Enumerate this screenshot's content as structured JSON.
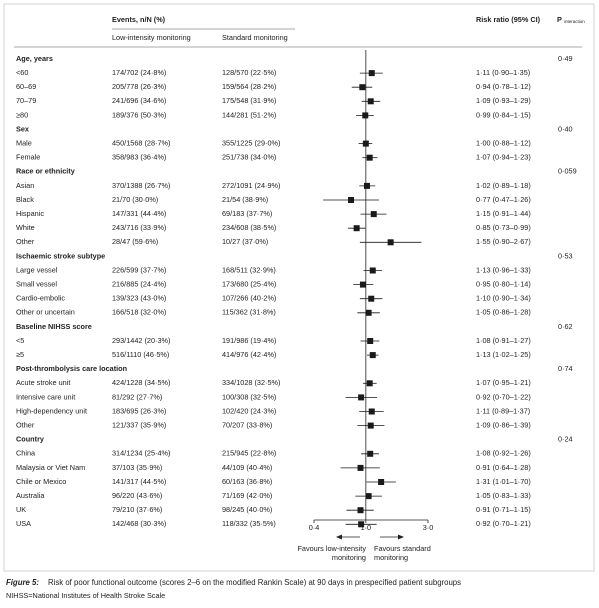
{
  "chart_data": {
    "type": "forest",
    "headers": {
      "events": "Events, n/N (%)",
      "low": "Low-intensity monitoring",
      "standard": "Standard monitoring",
      "rr": "Risk ratio (95% CI)",
      "p": "P",
      "p_sub": "interaction"
    },
    "groups": [
      {
        "name": "Age, years",
        "p": "0·49",
        "rows": [
          {
            "label": "<60",
            "low": "174/702 (24·8%)",
            "standard": "128/570 (22·5%)",
            "rr": 1.11,
            "lo": 0.9,
            "hi": 1.35,
            "rr_label": "1·11 (0·90–1·35)"
          },
          {
            "label": "60–69",
            "low": "205/778 (26·3%)",
            "standard": "159/564 (28·2%)",
            "rr": 0.94,
            "lo": 0.78,
            "hi": 1.12,
            "rr_label": "0·94 (0·78–1·12)"
          },
          {
            "label": "70–79",
            "low": "241/696 (34·6%)",
            "standard": "175/548 (31·9%)",
            "rr": 1.09,
            "lo": 0.93,
            "hi": 1.29,
            "rr_label": "1·09 (0·93–1·29)"
          },
          {
            "label": "≥80",
            "low": "189/376 (50·3%)",
            "standard": "144/281 (51·2%)",
            "rr": 0.99,
            "lo": 0.84,
            "hi": 1.15,
            "rr_label": "0·99 (0·84–1·15)"
          }
        ]
      },
      {
        "name": "Sex",
        "p": "0·40",
        "rows": [
          {
            "label": "Male",
            "low": "450/1568 (28·7%)",
            "standard": "355/1225 (29·0%)",
            "rr": 1.0,
            "lo": 0.88,
            "hi": 1.12,
            "rr_label": "1·00 (0·88–1·12)"
          },
          {
            "label": "Female",
            "low": "358/983 (36·4%)",
            "standard": "251/738 (34·0%)",
            "rr": 1.07,
            "lo": 0.94,
            "hi": 1.23,
            "rr_label": "1·07 (0·94–1·23)"
          }
        ]
      },
      {
        "name": "Race or ethnicity",
        "p": "0·059",
        "rows": [
          {
            "label": "Asian",
            "low": "370/1388 (26·7%)",
            "standard": "272/1091 (24·9%)",
            "rr": 1.02,
            "lo": 0.89,
            "hi": 1.18,
            "rr_label": "1·02 (0·89–1·18)"
          },
          {
            "label": "Black",
            "low": "21/70 (30·0%)",
            "standard": "21/54 (38·9%)",
            "rr": 0.77,
            "lo": 0.47,
            "hi": 1.26,
            "rr_label": "0·77 (0·47–1·26)"
          },
          {
            "label": "Hispanic",
            "low": "147/331 (44·4%)",
            "standard": "69/183 (37·7%)",
            "rr": 1.15,
            "lo": 0.91,
            "hi": 1.44,
            "rr_label": "1·15 (0·91–1·44)"
          },
          {
            "label": "White",
            "low": "243/716 (33·9%)",
            "standard": "234/608 (38·5%)",
            "rr": 0.85,
            "lo": 0.73,
            "hi": 0.99,
            "rr_label": "0·85 (0·73–0·99)"
          },
          {
            "label": "Other",
            "low": "28/47 (59·6%)",
            "standard": "10/27 (37·0%)",
            "rr": 1.55,
            "lo": 0.9,
            "hi": 2.67,
            "rr_label": "1·55 (0·90–2·67)"
          }
        ]
      },
      {
        "name": "Ischaemic stroke subtype",
        "p": "0·53",
        "rows": [
          {
            "label": "Large vessel",
            "low": "226/599 (37·7%)",
            "standard": "168/511 (32·9%)",
            "rr": 1.13,
            "lo": 0.96,
            "hi": 1.33,
            "rr_label": "1·13 (0·96–1·33)"
          },
          {
            "label": "Small vessel",
            "low": "216/885 (24·4%)",
            "standard": "173/680 (25·4%)",
            "rr": 0.95,
            "lo": 0.8,
            "hi": 1.14,
            "rr_label": "0·95 (0·80–1·14)"
          },
          {
            "label": "Cardio-embolic",
            "low": "139/323 (43·0%)",
            "standard": "107/266 (40·2%)",
            "rr": 1.1,
            "lo": 0.9,
            "hi": 1.34,
            "rr_label": "1·10 (0·90–1·34)"
          },
          {
            "label": "Other or uncertain",
            "low": "166/518 (32·0%)",
            "standard": "115/362 (31·8%)",
            "rr": 1.05,
            "lo": 0.86,
            "hi": 1.28,
            "rr_label": "1·05 (0·86–1·28)"
          }
        ]
      },
      {
        "name": "Baseline NIHSS score",
        "p": "0·62",
        "rows": [
          {
            "label": "<5",
            "low": "293/1442 (20·3%)",
            "standard": "191/986 (19·4%)",
            "rr": 1.08,
            "lo": 0.91,
            "hi": 1.27,
            "rr_label": "1·08 (0·91–1·27)"
          },
          {
            "label": "≥5",
            "low": "516/1110 (46·5%)",
            "standard": "414/976 (42·4%)",
            "rr": 1.13,
            "lo": 1.02,
            "hi": 1.25,
            "rr_label": "1·13 (1·02–1·25)"
          }
        ]
      },
      {
        "name": "Post-thrombolysis care location",
        "p": "0·74",
        "rows": [
          {
            "label": "Acute stroke unit",
            "low": "424/1228 (34·5%)",
            "standard": "334/1028 (32·5%)",
            "rr": 1.07,
            "lo": 0.95,
            "hi": 1.21,
            "rr_label": "1·07 (0·95–1·21)"
          },
          {
            "label": "Intensive care unit",
            "low": "81/292 (27·7%)",
            "standard": "100/308 (32·5%)",
            "rr": 0.92,
            "lo": 0.7,
            "hi": 1.22,
            "rr_label": "0·92 (0·70–1·22)"
          },
          {
            "label": "High-dependency unit",
            "low": "183/695 (26·3%)",
            "standard": "102/420 (24·3%)",
            "rr": 1.11,
            "lo": 0.89,
            "hi": 1.37,
            "rr_label": "1·11 (0·89–1·37)"
          },
          {
            "label": "Other",
            "low": "121/337 (35·9%)",
            "standard": "70/207 (33·8%)",
            "rr": 1.09,
            "lo": 0.86,
            "hi": 1.39,
            "rr_label": "1·09 (0·86–1·39)"
          }
        ]
      },
      {
        "name": "Country",
        "p": "0·24",
        "rows": [
          {
            "label": "China",
            "low": "314/1234 (25·4%)",
            "standard": "215/945 (22·8%)",
            "rr": 1.08,
            "lo": 0.92,
            "hi": 1.26,
            "rr_label": "1·08 (0·92–1·26)"
          },
          {
            "label": "Malaysia or Viet Nam",
            "low": "37/103 (35·9%)",
            "standard": "44/109 (40·4%)",
            "rr": 0.91,
            "lo": 0.64,
            "hi": 1.28,
            "rr_label": "0·91 (0·64–1·28)"
          },
          {
            "label": "Chile or Mexico",
            "low": "141/317 (44·5%)",
            "standard": "60/163 (36·8%)",
            "rr": 1.31,
            "lo": 1.01,
            "hi": 1.7,
            "rr_label": "1·31 (1·01–1·70)"
          },
          {
            "label": "Australia",
            "low": "96/220 (43·6%)",
            "standard": "71/169 (42·0%)",
            "rr": 1.05,
            "lo": 0.83,
            "hi": 1.33,
            "rr_label": "1·05 (0·83–1·33)"
          },
          {
            "label": "UK",
            "low": "79/210 (37·6%)",
            "standard": "98/245 (40·0%)",
            "rr": 0.91,
            "lo": 0.71,
            "hi": 1.15,
            "rr_label": "0·91 (0·71–1·15)"
          },
          {
            "label": "USA",
            "low": "142/468 (30·3%)",
            "standard": "118/332 (35·5%)",
            "rr": 0.92,
            "lo": 0.7,
            "hi": 1.21,
            "rr_label": "0·92 (0·70–1·21)"
          }
        ]
      }
    ],
    "xlim": [
      0.4,
      3.0
    ],
    "xticks": [
      {
        "value": 0.4,
        "label": "0·4"
      },
      {
        "value": 1.0,
        "label": "1·0"
      },
      {
        "value": 3.0,
        "label": "3·0"
      }
    ],
    "log_x": true,
    "color": "#1a1a1a",
    "favour_left": [
      "Favours low-intensity",
      "monitoring"
    ],
    "favour_right": [
      "Favours standard",
      "monitoring"
    ],
    "caption_label": "Figure 5:",
    "caption": "Risk of poor functional outcome (scores 2–6 on the modified Rankin Scale) at 90 days in prespecified patient subgroups",
    "footnote": "NIHSS=National Institutes of Health Stroke Scale"
  }
}
